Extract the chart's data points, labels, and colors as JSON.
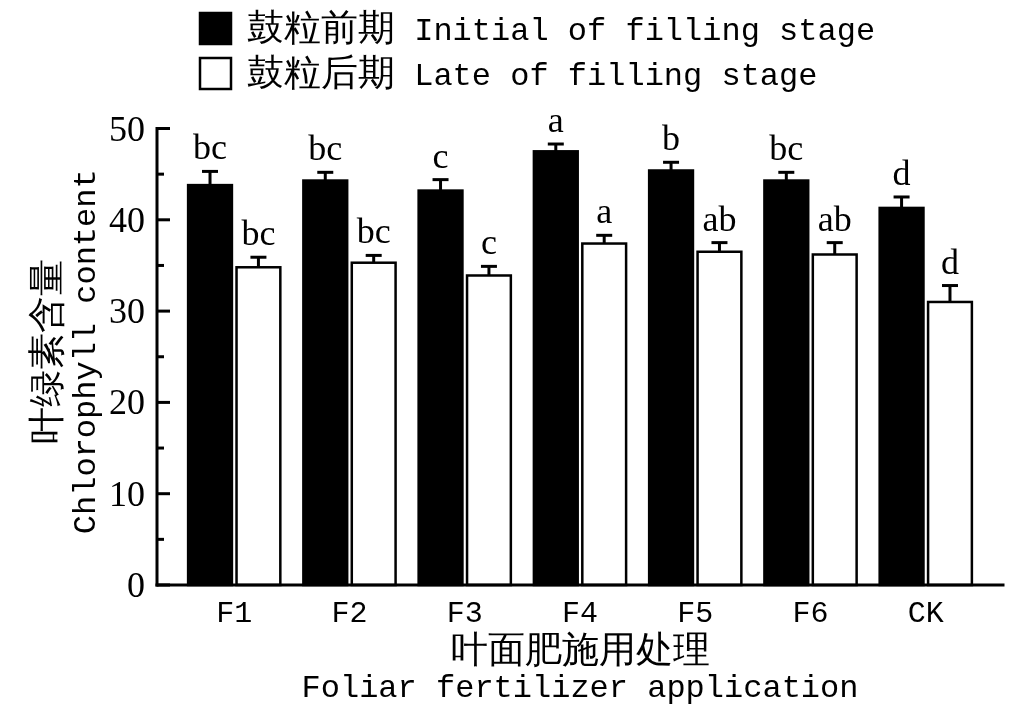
{
  "chart_data": {
    "type": "bar",
    "categories": [
      "F1",
      "F2",
      "F3",
      "F4",
      "F5",
      "F6",
      "CK"
    ],
    "series": [
      {
        "name": "鼓粒前期 Initial of filling stage",
        "color": "#000000",
        "values": [
          43.8,
          44.3,
          43.2,
          47.5,
          45.4,
          44.3,
          41.3
        ],
        "errors": [
          [
            43.8,
            45.3
          ],
          [
            44.3,
            45.2
          ],
          [
            43.2,
            44.4
          ],
          [
            47.5,
            48.3
          ],
          [
            45.4,
            46.3
          ],
          [
            44.3,
            45.2
          ],
          [
            41.3,
            42.5
          ]
        ],
        "value_labels": [
          "bc",
          "bc",
          "c",
          "a",
          "b",
          "bc",
          "d"
        ]
      },
      {
        "name": "鼓粒后期 Late of filling stage",
        "color": "#ffffff",
        "values": [
          34.8,
          35.3,
          33.9,
          37.4,
          36.5,
          36.2,
          31.0
        ],
        "errors": [
          [
            34.8,
            35.9
          ],
          [
            35.3,
            36.1
          ],
          [
            33.9,
            34.9
          ],
          [
            37.4,
            38.3
          ],
          [
            36.5,
            37.5
          ],
          [
            36.2,
            37.5
          ],
          [
            31.0,
            32.8
          ]
        ],
        "value_labels": [
          "bc",
          "bc",
          "c",
          "a",
          "ab",
          "ab",
          "d"
        ]
      }
    ],
    "xlabel": "叶面肥施用处理\nFoliar fertilizer application",
    "ylabel": "叶绿素含量\nChlorophyll content",
    "ylim": [
      0,
      50
    ],
    "yticks": [
      0,
      {
        "value": 5,
        "label": null
      },
      10,
      {
        "value": 15,
        "label": null
      },
      20,
      {
        "value": 25,
        "label": null
      },
      30,
      {
        "value": 35,
        "label": null
      },
      40,
      {
        "value": 45,
        "label": null
      },
      50
    ],
    "legend": "top"
  }
}
